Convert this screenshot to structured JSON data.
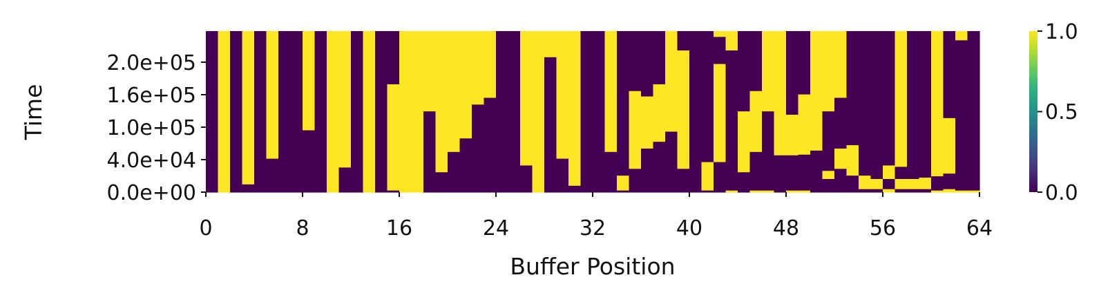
{
  "chart_data": {
    "type": "heatmap",
    "xlabel": "Buffer Position",
    "ylabel": "Time",
    "x_ticks": [
      "0",
      "8",
      "16",
      "24",
      "32",
      "40",
      "48",
      "56",
      "64"
    ],
    "y_ticks": [
      "0.0e+00",
      "4.0e+04",
      "1.0e+05",
      "1.6e+05",
      "2.0e+05"
    ],
    "colorbar": {
      "ticks": [
        "0.0",
        "0.5",
        "1.0"
      ],
      "range": [
        0,
        1
      ],
      "colormap": "viridis"
    },
    "x_range": [
      0,
      64
    ],
    "y_range": [
      0,
      238000
    ],
    "cmap_colors": {
      "low": "#440154",
      "mid": "#21918c",
      "high": "#fde725"
    },
    "columns": [
      {
        "base": 0,
        "t": []
      },
      {
        "base": 1,
        "t": []
      },
      {
        "base": 0,
        "t": []
      },
      {
        "base": 0,
        "t": [
          12000
        ]
      },
      {
        "base": 0,
        "t": []
      },
      {
        "base": 0,
        "t": [
          50000
        ]
      },
      {
        "base": 0,
        "t": []
      },
      {
        "base": 0,
        "t": []
      },
      {
        "base": 0,
        "t": [
          92000
        ]
      },
      {
        "base": 0,
        "t": []
      },
      {
        "base": 1,
        "t": []
      },
      {
        "base": 1,
        "t": [
          0,
          37000
        ]
      },
      {
        "base": 0,
        "t": []
      },
      {
        "base": 1,
        "t": []
      },
      {
        "base": 0,
        "t": []
      },
      {
        "base": 1,
        "t": [
          0,
          3000,
          160000,
          238000
        ]
      },
      {
        "base": 1,
        "t": []
      },
      {
        "base": 1,
        "t": []
      },
      {
        "base": 0,
        "t": [
          120000
        ]
      },
      {
        "base": 0,
        "t": [
          30000
        ]
      },
      {
        "base": 0,
        "t": [
          60000
        ]
      },
      {
        "base": 0,
        "t": [
          80000
        ]
      },
      {
        "base": 0,
        "t": [
          130000
        ]
      },
      {
        "base": 0,
        "t": [
          140000
        ]
      },
      {
        "base": 0,
        "t": []
      },
      {
        "base": 0,
        "t": []
      },
      {
        "base": 1,
        "t": [
          0,
          40000
        ]
      },
      {
        "base": 1,
        "t": []
      },
      {
        "base": 1,
        "t": [
          0,
          200000
        ]
      },
      {
        "base": 0,
        "t": [
          50000
        ]
      },
      {
        "base": 0,
        "t": [
          10000
        ]
      },
      {
        "base": 0,
        "t": []
      },
      {
        "base": 0,
        "t": []
      },
      {
        "base": 0,
        "t": [
          60000
        ]
      },
      {
        "base": 1,
        "t": [
          0,
          3000,
          25000
        ]
      },
      {
        "base": 0,
        "t": [
          35000,
          150000,
          238000
        ]
      },
      {
        "base": 0,
        "t": [
          65000,
          142000
        ]
      },
      {
        "base": 0,
        "t": [
          75000,
          160000
        ]
      },
      {
        "base": 0,
        "t": [
          90000,
          238000
        ]
      },
      {
        "base": 0,
        "t": [
          35000,
          210000
        ]
      },
      {
        "base": 1,
        "t": [
          0,
          238000
        ]
      },
      {
        "base": 1,
        "t": [
          0,
          3000,
          45000
        ]
      },
      {
        "base": 0,
        "t": [
          45000,
          190000,
          230000
        ]
      },
      {
        "base": 0,
        "t": [
          0,
          3000,
          210000
        ]
      },
      {
        "base": 0,
        "t": [
          30000,
          120000
        ]
      },
      {
        "base": 0,
        "t": [
          0,
          3000,
          60000,
          150000
        ]
      },
      {
        "base": 0,
        "t": [
          0,
          3000,
          120000
        ]
      },
      {
        "base": 0,
        "t": [
          55000,
          238000
        ]
      },
      {
        "base": 0,
        "t": [
          0,
          3000,
          55000,
          115000
        ]
      },
      {
        "base": 0,
        "t": [
          0,
          3000,
          56000,
          145000
        ]
      },
      {
        "base": 0,
        "t": [
          62000
        ]
      },
      {
        "base": 0,
        "t": [
          20000,
          32000,
          120000
        ]
      },
      {
        "base": 0,
        "t": [
          35000,
          65000,
          140000
        ]
      },
      {
        "base": 0,
        "t": [
          25000,
          70000
        ]
      },
      {
        "base": 0,
        "t": [
          5000,
          25000
        ]
      },
      {
        "base": 0,
        "t": [
          5000,
          20000
        ]
      },
      {
        "base": 0,
        "t": [
          0,
          5000,
          20000,
          40000
        ]
      },
      {
        "base": 0,
        "t": [
          5000,
          20000,
          38000
        ]
      },
      {
        "base": 0,
        "t": [
          5000,
          20000,
          238000
        ]
      },
      {
        "base": 1,
        "t": [
          0,
          5000,
          22000
        ]
      },
      {
        "base": 0,
        "t": [
          0,
          3000,
          24000
        ]
      },
      {
        "base": 0,
        "t": [
          0,
          5000,
          28000,
          110000
        ]
      },
      {
        "base": 0,
        "t": [
          0,
          3000,
          225000
        ]
      },
      {
        "base": 0,
        "t": [
          0,
          3000
        ]
      }
    ]
  }
}
